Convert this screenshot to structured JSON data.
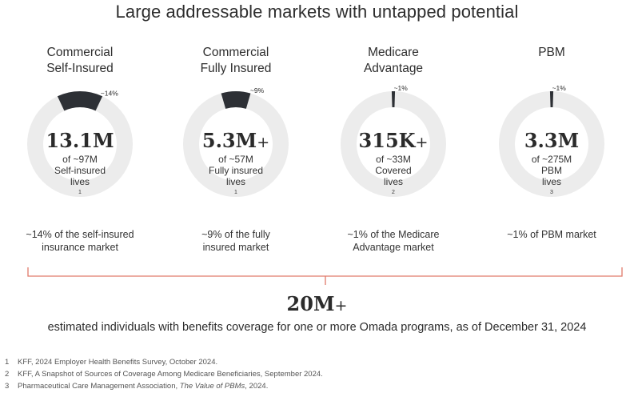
{
  "title": "Large addressable markets with untapped potential",
  "colors": {
    "track": "#ececec",
    "segment": "#2d3035",
    "bracket": "#e07a6a",
    "text": "#2b2b2b"
  },
  "chart_data": {
    "type": "pie",
    "title": "Large addressable markets with untapped potential",
    "markets": [
      {
        "name_line1": "Commercial",
        "name_line2": "Self-Insured",
        "share_label": "~14%",
        "share": 14,
        "value": "13.1M",
        "value_plus": "",
        "sub1": "of ~97M",
        "sub2": "Self-insured",
        "sub3": "lives",
        "footnote": "1",
        "caption1": "~14% of the self-insured",
        "caption2": "insurance market"
      },
      {
        "name_line1": "Commercial",
        "name_line2": "Fully Insured",
        "share_label": "~9%",
        "share": 9,
        "value": "5.3M",
        "value_plus": "+",
        "sub1": "of ~57M",
        "sub2": "Fully insured",
        "sub3": "lives",
        "footnote": "1",
        "caption1": "~9% of the fully",
        "caption2": "insured market"
      },
      {
        "name_line1": "Medicare",
        "name_line2": "Advantage",
        "share_label": "~1%",
        "share": 1,
        "value": "315K",
        "value_plus": "+",
        "sub1": "of ~33M",
        "sub2": "Covered",
        "sub3": "lives",
        "footnote": "2",
        "caption1": "~1% of the Medicare",
        "caption2": "Advantage market"
      },
      {
        "name_line1": "",
        "name_line2": "PBM",
        "share_label": "~1%",
        "share": 1,
        "value": "3.3M",
        "value_plus": "",
        "sub1": "of ~275M",
        "sub2": "PBM",
        "sub3": "lives",
        "footnote": "3",
        "caption1": "~1% of PBM market",
        "caption2": ""
      }
    ]
  },
  "total": {
    "value": "20M",
    "plus": "+",
    "description": "estimated individuals with benefits coverage for one or more Omada programs, as of December 31, 2024"
  },
  "footnotes": [
    {
      "num": "1",
      "text": "KFF, 2024 Employer Health Benefits Survey, October 2024."
    },
    {
      "num": "2",
      "text": "KFF, A Snapshot of Sources of Coverage Among Medicare Beneficiaries, September 2024."
    },
    {
      "num": "3",
      "text_before": "Pharmaceutical Care Management Association, ",
      "text_italic": "The Value of PBMs",
      "text_after": ", 2024."
    }
  ]
}
